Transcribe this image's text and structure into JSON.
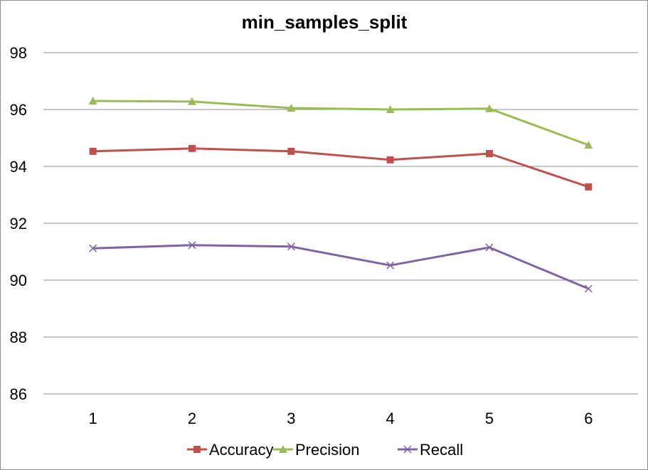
{
  "chart_data": {
    "type": "line",
    "title": "min_samples_split",
    "xlabel": "",
    "ylabel": "",
    "categories": [
      "1",
      "2",
      "3",
      "4",
      "5",
      "6"
    ],
    "ylim": [
      86,
      98
    ],
    "yticks": [
      "86",
      "88",
      "90",
      "92",
      "94",
      "96",
      "98"
    ],
    "grid": "horizontal",
    "legend_position": "bottom",
    "series": [
      {
        "name": "Accuracy",
        "color": "#c0504d",
        "marker": "square",
        "values": [
          94.53,
          94.63,
          94.53,
          94.23,
          94.45,
          93.28
        ]
      },
      {
        "name": "Precision",
        "color": "#9bbb59",
        "marker": "triangle",
        "values": [
          96.3,
          96.28,
          96.05,
          96.0,
          96.03,
          94.75
        ]
      },
      {
        "name": "Recall",
        "color": "#8064a2",
        "marker": "x",
        "values": [
          91.12,
          91.23,
          91.18,
          90.52,
          91.15,
          89.7
        ]
      }
    ]
  }
}
